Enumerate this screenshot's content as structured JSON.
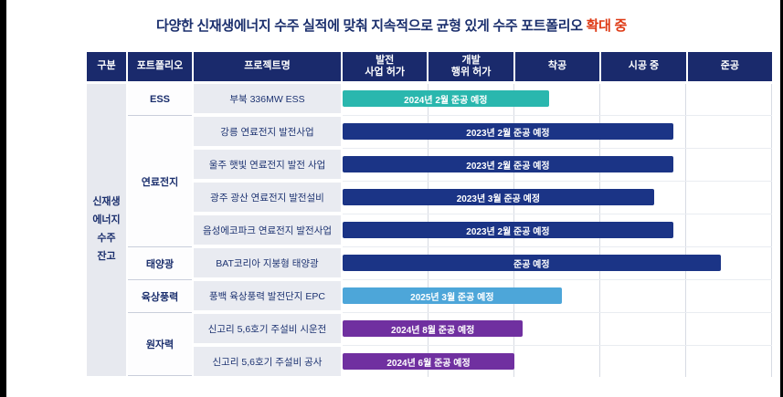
{
  "title": {
    "text": "다양한 신재생에너지 수주 실적에 맞춰 지속적으로 균형 있게 수주 포트폴리오 ",
    "highlight": "확대 중"
  },
  "chart_data": {
    "type": "table",
    "title": "다양한 신재생에너지 수주 실적에 맞춰 지속적으로 균형 있게 수주 포트폴리오 확대 중",
    "headers": {
      "category": "구분",
      "portfolio": "포트폴리오",
      "project": "프로젝트명",
      "timeline": [
        "발전\n사업 허가",
        "개발\n행위 허가",
        "착공",
        "시공 중",
        "준공"
      ]
    },
    "category_label": "신재생\n에너지\n수주\n잔고",
    "portfolio_groups": [
      {
        "label": "ESS",
        "row_span": 1
      },
      {
        "label": "연료전지",
        "row_span": 4
      },
      {
        "label": "태양광",
        "row_span": 1
      },
      {
        "label": "육상풍력",
        "row_span": 1
      },
      {
        "label": "원자력",
        "row_span": 2
      }
    ],
    "rows": [
      {
        "portfolio": "ESS",
        "project": "부북 336MW ESS",
        "bar": {
          "label": "2024년 2월 준공 예정",
          "color": "#2ab7ae",
          "end_pct": 48
        }
      },
      {
        "portfolio": "연료전지",
        "project": "강릉 연료전지 발전사업",
        "bar": {
          "label": "2023년 2월 준공 예정",
          "color": "#1b3486",
          "end_pct": 77
        }
      },
      {
        "portfolio": "연료전지",
        "project": "울주 햇빛 연료전지 발전 사업",
        "bar": {
          "label": "2023년 2월 준공 예정",
          "color": "#1b3486",
          "end_pct": 77
        }
      },
      {
        "portfolio": "연료전지",
        "project": "광주 광산 연료전지 발전설비",
        "bar": {
          "label": "2023년 3월 준공 예정",
          "color": "#1b3486",
          "end_pct": 72.5
        }
      },
      {
        "portfolio": "연료전지",
        "project": "음성에코파크 연료전지 발전사업",
        "bar": {
          "label": "2023년 2월 준공 예정",
          "color": "#1b3486",
          "end_pct": 77
        }
      },
      {
        "portfolio": "태양광",
        "project": "BAT코리아 지붕형 태양광",
        "bar": {
          "label": "준공 예정",
          "color": "#1b3486",
          "end_pct": 88
        }
      },
      {
        "portfolio": "육상풍력",
        "project": "풍백 육상풍력 발전단지 EPC",
        "bar": {
          "label": "2025년 3월 준공 예정",
          "color": "#4da6d9",
          "end_pct": 51
        }
      },
      {
        "portfolio": "원자력",
        "project": "신고리 5,6호기 주설비 시운전",
        "bar": {
          "label": "2024년 8월 준공 예정",
          "color": "#7030a0",
          "end_pct": 42
        }
      },
      {
        "portfolio": "원자력",
        "project": "신고리 5,6호기 주설비 공사",
        "bar": {
          "label": "2024년 6월 준공 예정",
          "color": "#7030a0",
          "end_pct": 40
        }
      }
    ],
    "colors": {
      "header_bg": "#1a2a6c",
      "title_navy": "#1b2f6d",
      "title_red": "#de3914",
      "project_cell_bg": "#e9ebf1",
      "category_cell_bg": "#e7e9ef",
      "grid_line": "#d7dbe3",
      "ess_bar": "#2ab7ae",
      "fuelcell_bar": "#1b3486",
      "wind_bar": "#4da6d9",
      "nuclear_bar": "#7030a0"
    }
  }
}
